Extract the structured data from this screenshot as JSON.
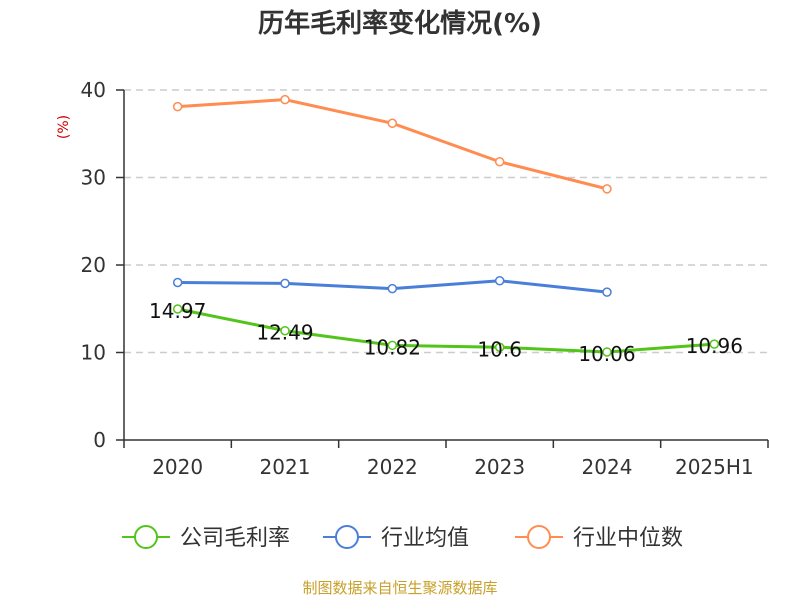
{
  "chart_data": {
    "type": "line",
    "title": "历年毛利率变化情况(%)",
    "ylabel": "(%)",
    "xlabel": "",
    "categories": [
      "2020",
      "2021",
      "2022",
      "2023",
      "2024",
      "2025H1"
    ],
    "ylim": [
      0,
      40
    ],
    "yticks": [
      0,
      10,
      20,
      30,
      40
    ],
    "grid": true,
    "legend_position": "bottom",
    "series": [
      {
        "name": "公司毛利率",
        "color": "#52c41a",
        "values": [
          14.97,
          12.49,
          10.82,
          10.6,
          10.06,
          10.96
        ],
        "labels": [
          "14.97",
          "12.49",
          "10.82",
          "10.6",
          "10.06",
          "10.96"
        ]
      },
      {
        "name": "行业均值",
        "color": "#4a7fd9",
        "values": [
          18.0,
          17.9,
          17.3,
          18.2,
          16.9,
          null
        ]
      },
      {
        "name": "行业中位数",
        "color": "#ff8c50",
        "values": [
          38.1,
          38.9,
          36.2,
          31.8,
          28.7,
          null
        ]
      }
    ]
  },
  "source": "制图数据来自恒生聚源数据库",
  "colors": {
    "title": "#333333",
    "axis": "#333333",
    "grid": "#cccccc",
    "ylabel": "#cc0000",
    "source": "#c8a028"
  }
}
